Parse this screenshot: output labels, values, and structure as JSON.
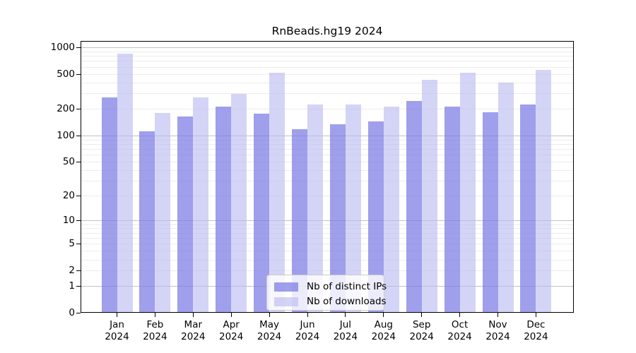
{
  "title": "RnBeads.hg19 2024",
  "legend": {
    "items": [
      {
        "label": "Nb of distinct IPs",
        "color_key": "distinct_ips"
      },
      {
        "label": "Nb of downloads",
        "color_key": "downloads"
      }
    ]
  },
  "colors": {
    "distinct_ips": "rgba(122,122,229,0.72)",
    "downloads": "rgba(186,186,241,0.62)",
    "grid_major": "#c2c2c2",
    "grid_minor": "#ececec",
    "axis": "#000000",
    "legend_border": "#cccccc"
  },
  "chart_data": {
    "type": "bar",
    "title": "RnBeads.hg19 2024",
    "categories": [
      "Jan 2024",
      "Feb 2024",
      "Mar 2024",
      "Apr 2024",
      "May 2024",
      "Jun 2024",
      "Jul 2024",
      "Aug 2024",
      "Sep 2024",
      "Oct 2024",
      "Nov 2024",
      "Dec 2024"
    ],
    "series": [
      {
        "name": "Nb of distinct IPs",
        "key": "distinct_ips",
        "values": [
          269,
          111,
          164,
          214,
          178,
          117,
          133,
          145,
          245,
          212,
          184,
          224
        ]
      },
      {
        "name": "Nb of downloads",
        "key": "downloads",
        "values": [
          840,
          180,
          271,
          295,
          519,
          224,
          224,
          214,
          426,
          512,
          396,
          556
        ]
      }
    ],
    "xlabel": "",
    "ylabel": "",
    "y_scale": "log1p",
    "y_ticks": [
      0,
      1,
      2,
      5,
      10,
      20,
      50,
      100,
      200,
      500,
      1000
    ],
    "y_max": 1180,
    "grid_on": true,
    "grid": {
      "major": [
        1,
        10,
        100,
        1000
      ],
      "minor": [
        2,
        3,
        4,
        5,
        6,
        7,
        8,
        9,
        20,
        30,
        40,
        50,
        60,
        70,
        80,
        90,
        200,
        300,
        400,
        500,
        600,
        700,
        800,
        900
      ]
    },
    "legend_position": "inside-bottom-center"
  }
}
